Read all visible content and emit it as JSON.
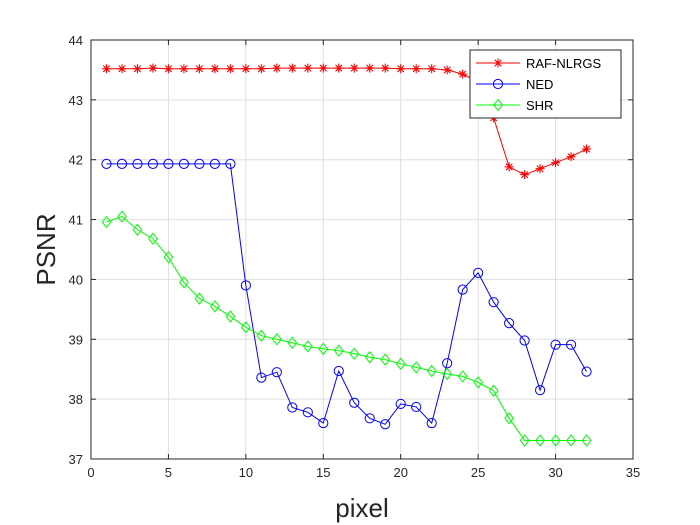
{
  "chart_data": {
    "type": "line",
    "title": "",
    "xlabel": "pixel",
    "ylabel": "PSNR",
    "xlim": [
      0,
      35
    ],
    "ylim": [
      37,
      44
    ],
    "xticks": [
      0,
      5,
      10,
      15,
      20,
      25,
      30,
      35
    ],
    "yticks": [
      37,
      38,
      39,
      40,
      41,
      42,
      43,
      44
    ],
    "grid": true,
    "legend_position": "top-right",
    "x": [
      1,
      2,
      3,
      4,
      5,
      6,
      7,
      8,
      9,
      10,
      11,
      12,
      13,
      14,
      15,
      16,
      17,
      18,
      19,
      20,
      21,
      22,
      23,
      24,
      25,
      26,
      27,
      28,
      29,
      30,
      31,
      32
    ],
    "series": [
      {
        "name": "RAF-NLRGS",
        "color": "#ff0000",
        "marker": "asterisk",
        "values": [
          43.52,
          43.52,
          43.52,
          43.53,
          43.52,
          43.52,
          43.52,
          43.52,
          43.52,
          43.52,
          43.52,
          43.53,
          43.53,
          43.53,
          43.53,
          43.53,
          43.53,
          43.53,
          43.53,
          43.52,
          43.52,
          43.52,
          43.5,
          43.43,
          43.3,
          42.7,
          41.88,
          41.75,
          41.85,
          41.95,
          42.05,
          42.18
        ]
      },
      {
        "name": "NED",
        "color": "#0000ff",
        "marker": "circle",
        "values": [
          41.93,
          41.93,
          41.93,
          41.93,
          41.93,
          41.93,
          41.93,
          41.93,
          41.93,
          39.9,
          38.36,
          38.45,
          37.86,
          37.78,
          37.6,
          38.47,
          37.94,
          37.68,
          37.58,
          37.92,
          37.87,
          37.6,
          38.6,
          39.83,
          40.11,
          39.62,
          39.27,
          38.98,
          38.15,
          38.91,
          38.91,
          38.46
        ]
      },
      {
        "name": "SHR",
        "color": "#00ff00",
        "marker": "diamond",
        "values": [
          40.96,
          41.05,
          40.83,
          40.68,
          40.37,
          39.95,
          39.68,
          39.55,
          39.38,
          39.2,
          39.06,
          39.0,
          38.94,
          38.88,
          38.84,
          38.81,
          38.76,
          38.7,
          38.66,
          38.59,
          38.53,
          38.47,
          38.42,
          38.38,
          38.28,
          38.14,
          37.68,
          37.31,
          37.31,
          37.31,
          37.31,
          37.31
        ]
      }
    ]
  }
}
